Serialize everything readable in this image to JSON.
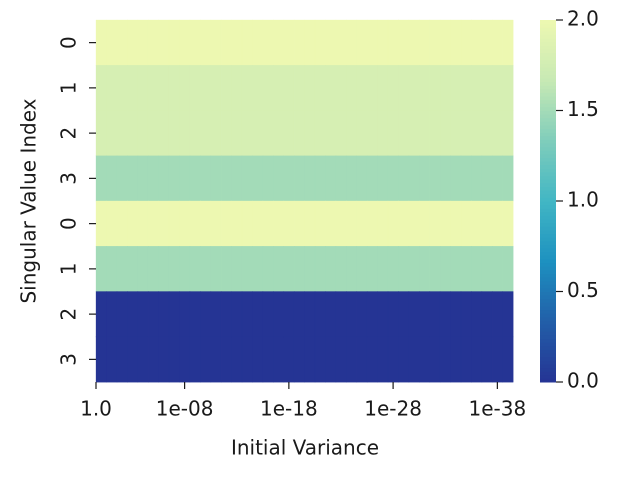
{
  "chart_data": {
    "type": "heatmap",
    "xlabel": "Initial Variance",
    "ylabel": "Singular Value Index",
    "categories": [
      "1.0",
      null,
      null,
      null,
      null,
      null,
      null,
      null,
      "1e-08",
      null,
      null,
      null,
      null,
      null,
      null,
      null,
      null,
      null,
      "1e-18",
      null,
      null,
      null,
      null,
      null,
      null,
      null,
      null,
      null,
      "1e-28",
      null,
      null,
      null,
      null,
      null,
      null,
      null,
      null,
      null,
      "1e-38",
      null
    ],
    "y_categories": [
      "0",
      "1",
      "2",
      "3",
      "0",
      "1",
      "2",
      "3"
    ],
    "values": [
      [
        2.0,
        2.0,
        2.0,
        2.0,
        2.0,
        2.0,
        2.0,
        2.0,
        2.0,
        2.0,
        2.0,
        2.0,
        2.0,
        2.0,
        2.0,
        2.0,
        2.0,
        2.0,
        2.0,
        2.0,
        2.0,
        2.0,
        2.0,
        2.0,
        2.0,
        2.0,
        2.0,
        2.0,
        2.0,
        2.0,
        2.0,
        2.0,
        2.0,
        2.0,
        2.0,
        2.0,
        2.0,
        2.0,
        2.0,
        2.0
      ],
      [
        1.8,
        1.8,
        1.8,
        1.8,
        1.8,
        1.8,
        1.8,
        1.8,
        1.8,
        1.8,
        1.8,
        1.8,
        1.8,
        1.8,
        1.8,
        1.8,
        1.8,
        1.8,
        1.8,
        1.8,
        1.8,
        1.8,
        1.8,
        1.8,
        1.8,
        1.8,
        1.8,
        1.8,
        1.8,
        1.8,
        1.8,
        1.8,
        1.8,
        1.8,
        1.8,
        1.8,
        1.8,
        1.8,
        1.8,
        1.8
      ],
      [
        1.8,
        1.8,
        1.8,
        1.8,
        1.8,
        1.8,
        1.8,
        1.8,
        1.8,
        1.8,
        1.8,
        1.8,
        1.8,
        1.8,
        1.8,
        1.8,
        1.8,
        1.8,
        1.8,
        1.8,
        1.8,
        1.8,
        1.8,
        1.8,
        1.8,
        1.8,
        1.8,
        1.8,
        1.8,
        1.8,
        1.8,
        1.8,
        1.8,
        1.8,
        1.8,
        1.8,
        1.8,
        1.8,
        1.8,
        1.8
      ],
      [
        1.5,
        1.5,
        1.5,
        1.5,
        1.5,
        1.5,
        1.5,
        1.5,
        1.5,
        1.5,
        1.5,
        1.5,
        1.5,
        1.5,
        1.5,
        1.5,
        1.5,
        1.5,
        1.5,
        1.5,
        1.5,
        1.5,
        1.5,
        1.5,
        1.5,
        1.5,
        1.5,
        1.5,
        1.5,
        1.5,
        1.5,
        1.5,
        1.5,
        1.5,
        1.5,
        1.5,
        1.5,
        1.5,
        1.5,
        1.5
      ],
      [
        2.0,
        2.0,
        2.0,
        2.0,
        2.0,
        2.0,
        2.0,
        2.0,
        2.0,
        2.0,
        2.0,
        2.0,
        2.0,
        2.0,
        2.0,
        2.0,
        2.0,
        2.0,
        2.0,
        2.0,
        2.0,
        2.0,
        2.0,
        2.0,
        2.0,
        2.0,
        2.0,
        2.0,
        2.0,
        2.0,
        2.0,
        2.0,
        2.0,
        2.0,
        2.0,
        2.0,
        2.0,
        2.0,
        2.0,
        2.0
      ],
      [
        1.5,
        1.5,
        1.5,
        1.5,
        1.5,
        1.5,
        1.5,
        1.5,
        1.5,
        1.5,
        1.5,
        1.5,
        1.5,
        1.5,
        1.5,
        1.5,
        1.5,
        1.5,
        1.5,
        1.5,
        1.5,
        1.5,
        1.5,
        1.5,
        1.5,
        1.5,
        1.5,
        1.5,
        1.5,
        1.5,
        1.5,
        1.5,
        1.5,
        1.5,
        1.5,
        1.5,
        1.5,
        1.5,
        1.5,
        1.5
      ],
      [
        0.0,
        0.0,
        0.0,
        0.0,
        0.0,
        0.0,
        0.0,
        0.0,
        0.0,
        0.0,
        0.0,
        0.0,
        0.0,
        0.0,
        0.0,
        0.0,
        0.0,
        0.0,
        0.0,
        0.0,
        0.0,
        0.0,
        0.0,
        0.0,
        0.0,
        0.0,
        0.0,
        0.0,
        0.0,
        0.0,
        0.0,
        0.0,
        0.0,
        0.0,
        0.0,
        0.0,
        0.0,
        0.0,
        0.0,
        0.0
      ],
      [
        0.0,
        0.0,
        0.0,
        0.0,
        0.0,
        0.0,
        0.0,
        0.0,
        0.0,
        0.0,
        0.0,
        0.0,
        0.0,
        0.0,
        0.0,
        0.0,
        0.0,
        0.0,
        0.0,
        0.0,
        0.0,
        0.0,
        0.0,
        0.0,
        0.0,
        0.0,
        0.0,
        0.0,
        0.0,
        0.0,
        0.0,
        0.0,
        0.0,
        0.0,
        0.0,
        0.0,
        0.0,
        0.0,
        0.0,
        0.0
      ]
    ],
    "colormap": [
      "#253494",
      "#225ea8",
      "#1d91c0",
      "#41b6c4",
      "#7fcdbb",
      "#c7e9b4",
      "#edf8b1"
    ],
    "clim": [
      0,
      2
    ],
    "cticks": [
      {
        "value": 0,
        "label": "0.0"
      },
      {
        "value": 0.5,
        "label": "0.5"
      },
      {
        "value": 1,
        "label": "1.0"
      },
      {
        "value": 1.5,
        "label": "1.5"
      },
      {
        "value": 2,
        "label": "2.0"
      }
    ]
  }
}
